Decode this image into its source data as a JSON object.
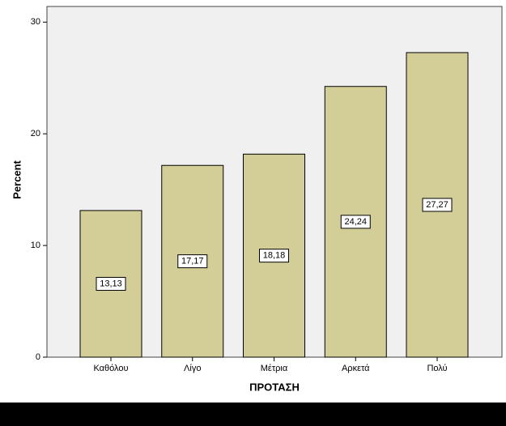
{
  "chart_data": {
    "type": "bar",
    "x_label": "ΠΡΟΤΑΣΗ",
    "y_label": "Percent",
    "categories": [
      "Καθόλου",
      "Λίγο",
      "Μέτρια",
      "Αρκετά",
      "Πολύ"
    ],
    "values": [
      13.13,
      17.17,
      18.18,
      24.24,
      27.27
    ],
    "value_labels": [
      "13,13",
      "17,17",
      "18,18",
      "24,24",
      "27,27"
    ],
    "color": "#d3ce97",
    "ylim": [
      0,
      31.4
    ],
    "yticks": [
      0,
      10,
      20,
      30
    ],
    "grid": false
  }
}
